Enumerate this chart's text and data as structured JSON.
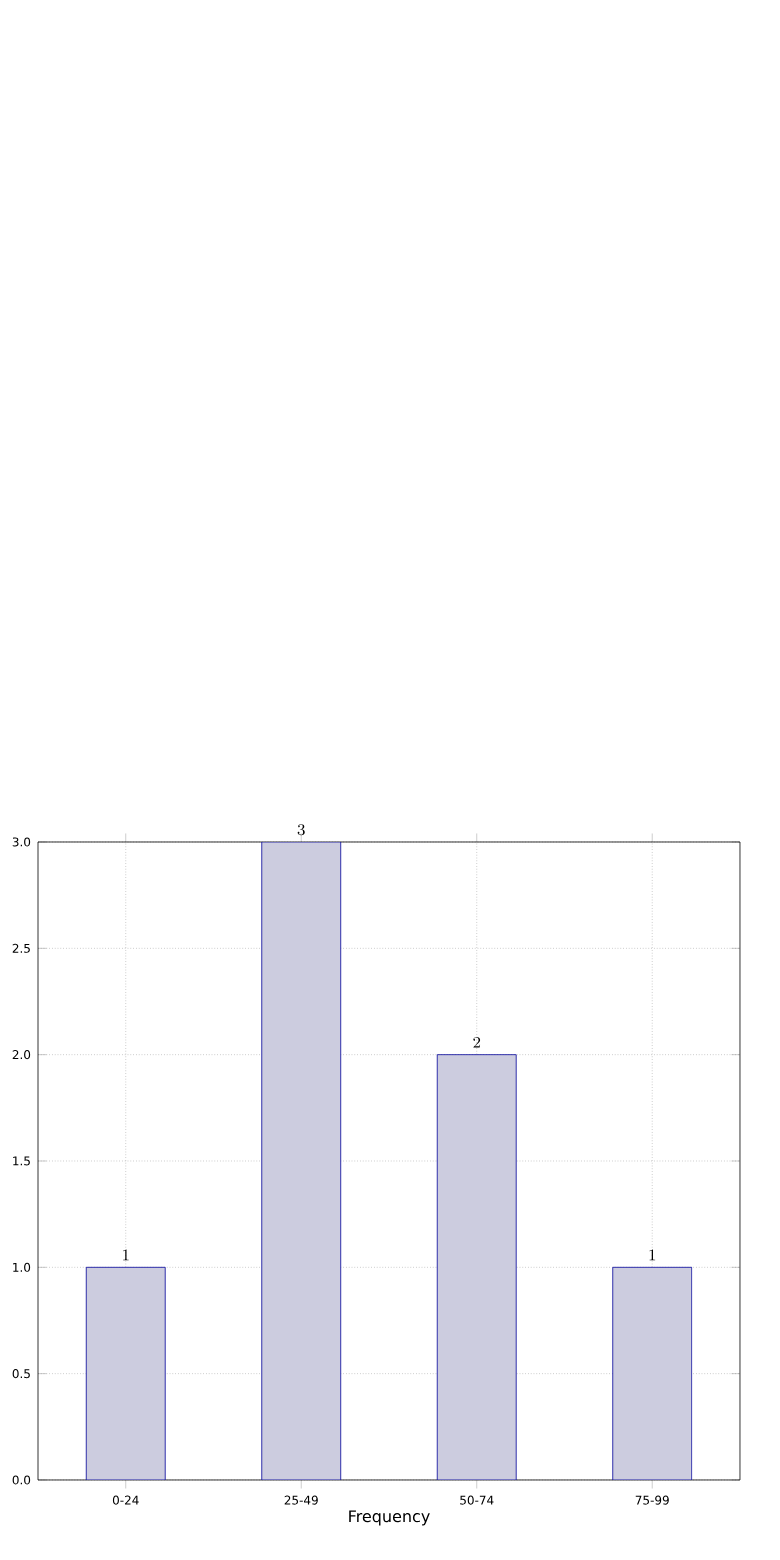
{
  "chart_data": {
    "type": "bar",
    "xlabel": "Frequency",
    "categories": [
      "0-24",
      "25-49",
      "50-74",
      "75-99"
    ],
    "values": [
      1,
      3,
      2,
      1
    ],
    "color": "#ccccdf",
    "data_labels": true,
    "grid": true,
    "ylim": [
      0,
      3
    ],
    "yticks": [
      {
        "value": 0,
        "label": "0.0"
      },
      {
        "value": 0.5,
        "label": "0.5"
      },
      {
        "value": 1,
        "label": "1.0"
      },
      {
        "value": 1.5,
        "label": "1.5"
      },
      {
        "value": 2,
        "label": "2.0"
      },
      {
        "value": 2.5,
        "label": "2.5"
      },
      {
        "value": 3,
        "label": "3.0"
      }
    ]
  }
}
